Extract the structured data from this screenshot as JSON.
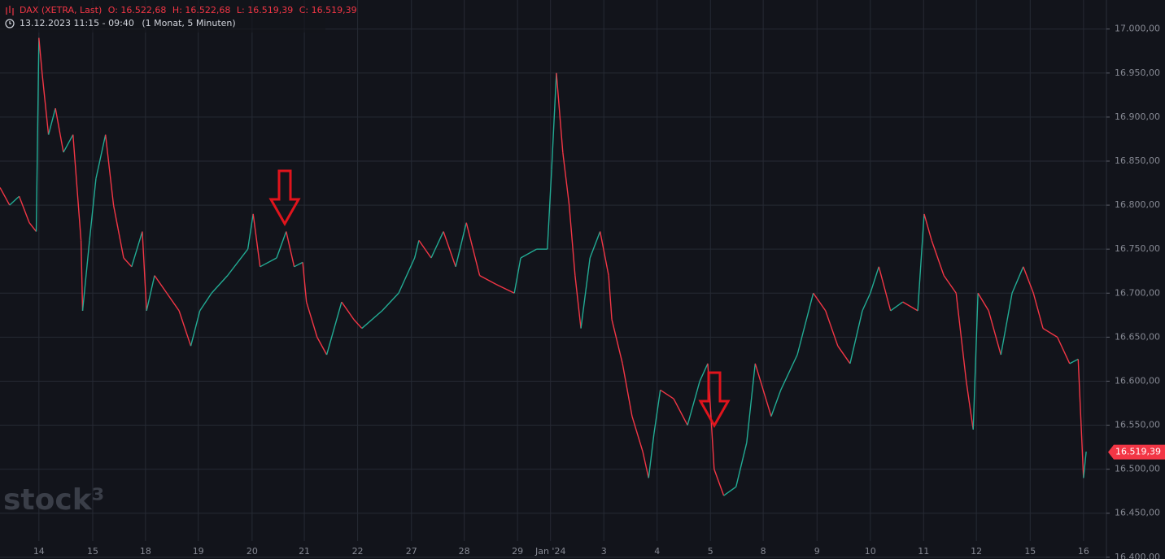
{
  "chart_data": {
    "type": "line",
    "title": "DAX (XETRA, Last)",
    "ohlc": [
      "O: 16.522,68",
      "H: 16.522,68",
      "L: 16.519,39",
      "C: 16.519,39"
    ],
    "subtitle": "13.12.2023 11:15 - 09:40",
    "interval": "(1 Monat, 5 Minuten)",
    "watermark": "stock³",
    "last_price": {
      "value": 16519.39,
      "label": "16.519,39"
    },
    "colors": {
      "up": "#22ab94",
      "down": "#f23645",
      "last": "#f23645"
    },
    "x": [
      -0.73,
      -0.55,
      -0.37,
      -0.18,
      -0.05,
      0,
      0.06,
      0.18,
      0.31,
      0.46,
      0.64,
      0.79,
      0.82,
      0.95,
      1.07,
      1.25,
      1.4,
      1.59,
      1.74,
      1.94,
      2.02,
      2.17,
      2.4,
      2.63,
      2.85,
      3.02,
      3.24,
      3.54,
      3.92,
      4.02,
      4.15,
      4.46,
      4.64,
      4.79,
      4.95,
      5.02,
      5.22,
      5.4,
      5.68,
      5.91,
      6.06,
      6.44,
      6.75,
      7.05,
      7.13,
      7.36,
      7.59,
      7.82,
      8.02,
      8.27,
      8.58,
      8.92,
      9.04,
      9.34,
      9.54,
      9.62,
      9.71,
      9.83,
      9.95,
      10.06,
      10.17,
      10.34,
      10.53,
      10.69,
      10.75,
      10.95,
      11.13,
      11.33,
      11.44,
      11.54,
      11.66,
      11.91,
      12.17,
      12.4,
      12.55,
      12.67,
      12.85,
      13.08,
      13.28,
      13.44,
      13.54,
      13.74,
      13.92,
      14.23,
      14.53,
      14.76,
      14.99,
      15.22,
      15.45,
      15.6,
      15.76,
      15.98,
      16.21,
      16.49,
      16.61,
      16.75,
      16.98,
      17.21,
      17.4,
      17.53,
      17.62,
      17.82,
      18.05,
      18.26,
      18.47,
      18.66,
      18.84,
      19.11,
      19.34,
      19.5,
      19.6,
      19.65
    ],
    "values": [
      16820,
      16800,
      16810,
      16780,
      16770,
      16990,
      16950,
      16880,
      16910,
      16860,
      16880,
      16760,
      16680,
      16760,
      16830,
      16880,
      16800,
      16740,
      16730,
      16770,
      16680,
      16720,
      16700,
      16680,
      16640,
      16680,
      16700,
      16720,
      16750,
      16790,
      16730,
      16740,
      16770,
      16730,
      16735,
      16690,
      16650,
      16630,
      16690,
      16670,
      16660,
      16680,
      16700,
      16740,
      16760,
      16740,
      16770,
      16730,
      16780,
      16720,
      16710,
      16700,
      16740,
      16750,
      16750,
      16840,
      16950,
      16860,
      16800,
      16720,
      16660,
      16740,
      16770,
      16720,
      16670,
      16620,
      16560,
      16520,
      16490,
      16540,
      16590,
      16580,
      16550,
      16600,
      16620,
      16500,
      16470,
      16480,
      16530,
      16620,
      16600,
      16560,
      16590,
      16630,
      16700,
      16680,
      16640,
      16620,
      16680,
      16700,
      16730,
      16680,
      16690,
      16680,
      16790,
      16760,
      16720,
      16700,
      16600,
      16545,
      16700,
      16680,
      16630,
      16700,
      16730,
      16700,
      16660,
      16650,
      16620,
      16625,
      16490,
      16520
    ],
    "xlim": [
      -0.73,
      20.03
    ],
    "xticks": [
      {
        "value": 0,
        "label": "14"
      },
      {
        "value": 1.01,
        "label": "15"
      },
      {
        "value": 2.0,
        "label": "18"
      },
      {
        "value": 2.99,
        "label": "19"
      },
      {
        "value": 4.0,
        "label": "20"
      },
      {
        "value": 4.98,
        "label": "21"
      },
      {
        "value": 5.98,
        "label": "22"
      },
      {
        "value": 6.99,
        "label": "27"
      },
      {
        "value": 7.98,
        "label": "28"
      },
      {
        "value": 8.98,
        "label": "29"
      },
      {
        "value": 9.6,
        "label": "Jan '24"
      },
      {
        "value": 10.6,
        "label": "3"
      },
      {
        "value": 11.6,
        "label": "4"
      },
      {
        "value": 12.6,
        "label": "5"
      },
      {
        "value": 13.59,
        "label": "8"
      },
      {
        "value": 14.6,
        "label": "9"
      },
      {
        "value": 15.6,
        "label": "10"
      },
      {
        "value": 16.6,
        "label": "11"
      },
      {
        "value": 17.59,
        "label": "12"
      },
      {
        "value": 18.6,
        "label": "15"
      },
      {
        "value": 19.6,
        "label": "16"
      }
    ],
    "ylim": [
      16398,
      17033
    ],
    "yticks": [
      {
        "value": 16400,
        "label": "16.400,00"
      },
      {
        "value": 16450,
        "label": "16.450,00"
      },
      {
        "value": 16500,
        "label": "16.500,00"
      },
      {
        "value": 16550,
        "label": "16.550,00"
      },
      {
        "value": 16600,
        "label": "16.600,00"
      },
      {
        "value": 16650,
        "label": "16.650,00"
      },
      {
        "value": 16700,
        "label": "16.700,00"
      },
      {
        "value": 16750,
        "label": "16.750,00"
      },
      {
        "value": 16800,
        "label": "16.800,00"
      },
      {
        "value": 16850,
        "label": "16.850,00"
      },
      {
        "value": 16900,
        "label": "16.900,00"
      },
      {
        "value": 16950,
        "label": "16.950,00"
      },
      {
        "value": 17000,
        "label": "17.000,00"
      }
    ],
    "grid": true
  }
}
